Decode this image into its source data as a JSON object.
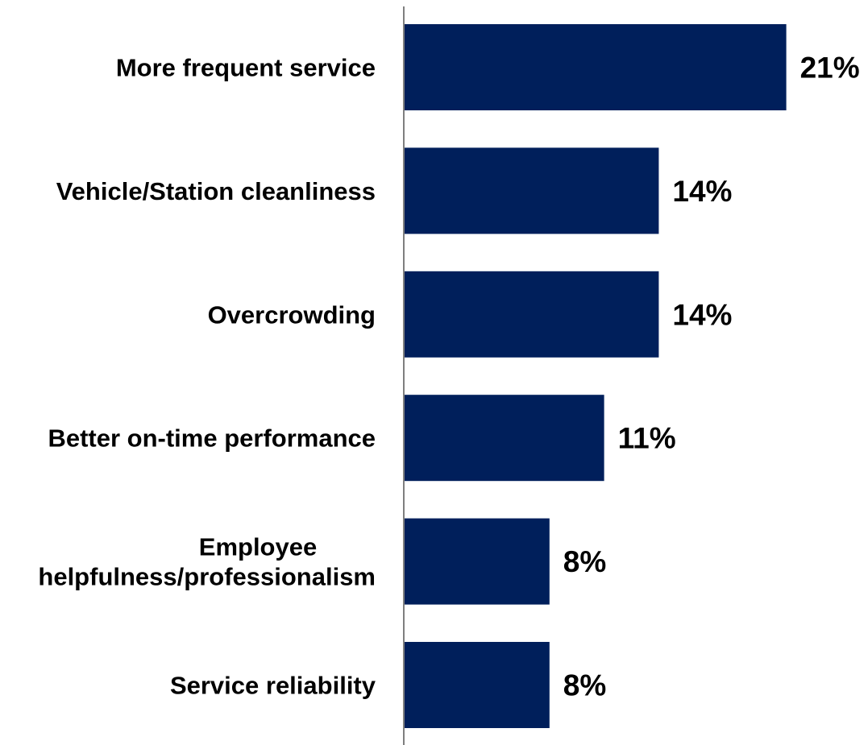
{
  "chart_data": {
    "type": "bar",
    "orientation": "horizontal",
    "categories": [
      "More frequent service",
      "Vehicle/Station cleanliness",
      "Overcrowding",
      "Better on-time performance",
      [
        "Employee",
        "helpfulness/professionalism"
      ],
      "Service reliability"
    ],
    "values": [
      21,
      14,
      14,
      11,
      8,
      8
    ],
    "value_labels": [
      "21%",
      "14%",
      "14%",
      "11%",
      "8%",
      "8%"
    ],
    "bar_color": "#001f5b",
    "axis_color": "#7f7f7f",
    "grid": false,
    "legend": "none"
  }
}
